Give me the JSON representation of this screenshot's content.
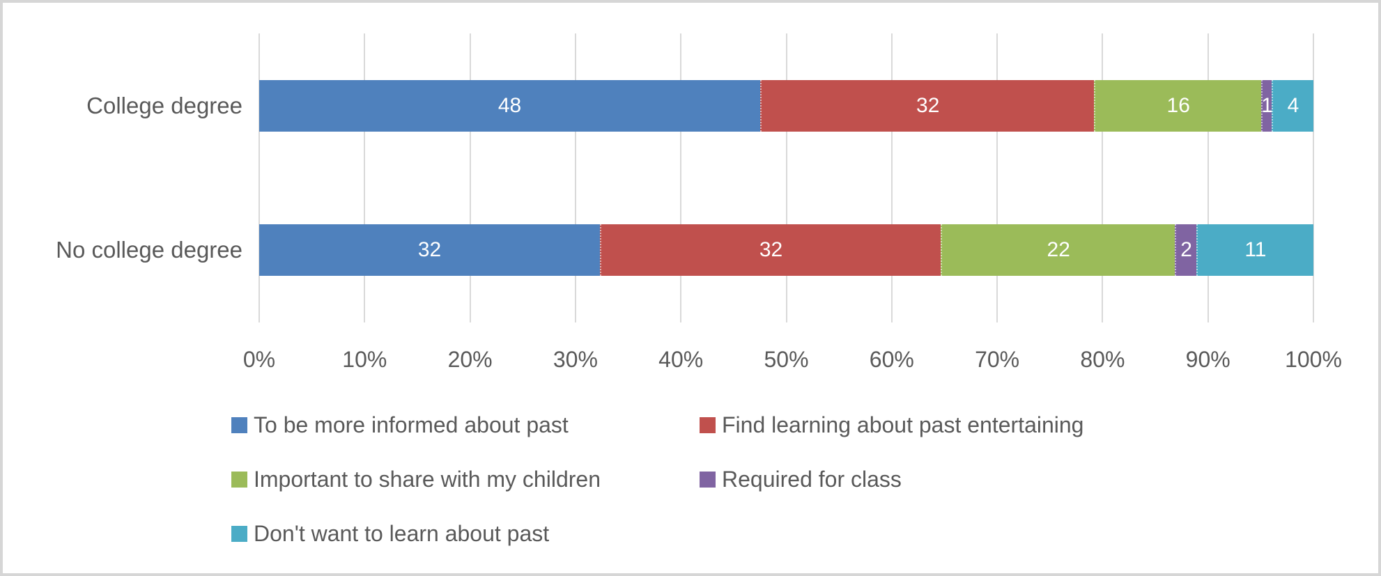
{
  "frame": {
    "background": "#ffffff",
    "border_color": "#d6d6d6"
  },
  "chart_data": {
    "type": "bar",
    "subtype": "stacked-100",
    "orientation": "horizontal",
    "title": "",
    "categories": [
      "College degree",
      "No college degree"
    ],
    "series": [
      {
        "name": "To be more informed about past",
        "color": "#4F81BD",
        "values": [
          48,
          32
        ]
      },
      {
        "name": "Find learning about past entertaining",
        "color": "#C0504D",
        "values": [
          32,
          32
        ]
      },
      {
        "name": "Important to share with my children",
        "color": "#9BBB59",
        "values": [
          16,
          22
        ]
      },
      {
        "name": "Required for class",
        "color": "#8064A2",
        "values": [
          1,
          2
        ]
      },
      {
        "name": "Don't want to learn about past",
        "color": "#4BACC6",
        "values": [
          4,
          11
        ]
      }
    ],
    "data_labels_shown": true,
    "data_label_color": "#ffffff",
    "x_axis": {
      "min": 0,
      "max": 100,
      "tick_labels": [
        "0%",
        "10%",
        "20%",
        "30%",
        "40%",
        "50%",
        "60%",
        "70%",
        "80%",
        "90%",
        "100%"
      ]
    },
    "grid": true,
    "gridline_color": "#d9d9d9",
    "legend_position": "bottom",
    "legend_columns": 2,
    "text_color": "#595959"
  }
}
